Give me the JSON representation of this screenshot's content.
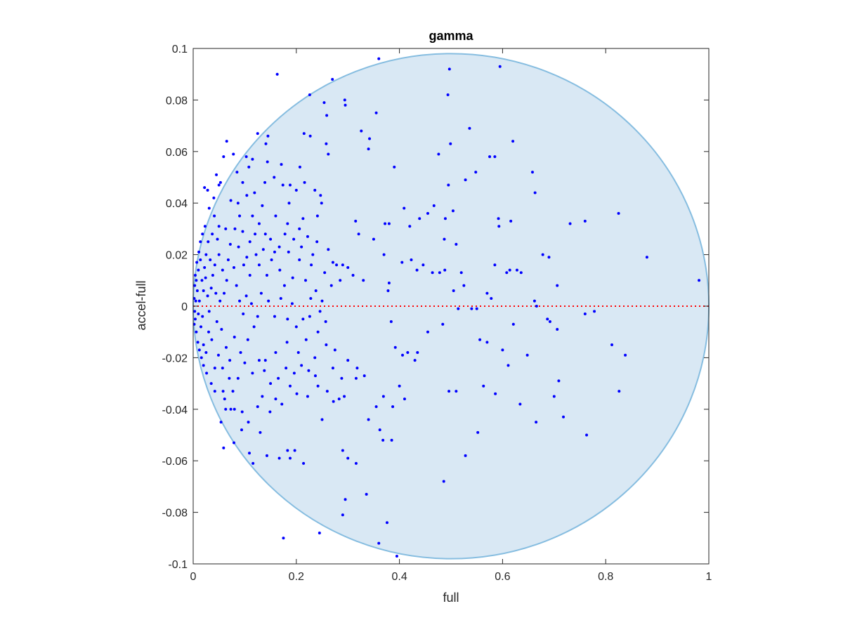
{
  "chart_data": {
    "type": "scatter",
    "title": "gamma",
    "xlabel": "full",
    "ylabel": "accel-full",
    "xlim": [
      0,
      1
    ],
    "ylim": [
      -0.1,
      0.1
    ],
    "xticks": [
      0,
      0.2,
      0.4,
      0.6,
      0.8,
      1
    ],
    "xtick_labels": [
      "0",
      "0.2",
      "0.4",
      "0.6",
      "0.8",
      "1"
    ],
    "yticks": [
      -0.1,
      -0.08,
      -0.06,
      -0.04,
      -0.02,
      0,
      0.02,
      0.04,
      0.06,
      0.08,
      0.1
    ],
    "ytick_labels": [
      "-0.1",
      "-0.08",
      "-0.06",
      "-0.04",
      "-0.02",
      "0",
      "0.02",
      "0.04",
      "0.06",
      "0.08",
      "0.1"
    ],
    "grid": false,
    "reference_line": {
      "y": 0,
      "style": "dotted",
      "color": "#ff0000"
    },
    "region": {
      "type": "ellipse",
      "center": [
        0.5,
        0
      ],
      "radii": [
        0.5,
        0.098
      ],
      "fill": "#d9e8f4",
      "stroke": "#86bde0"
    },
    "marker_color": "#0000ff",
    "points": [
      [
        0.163,
        0.09
      ],
      [
        0.36,
        0.096
      ],
      [
        0.497,
        0.092
      ],
      [
        0.595,
        0.093
      ],
      [
        0.27,
        0.088
      ],
      [
        0.294,
        0.08
      ],
      [
        0.254,
        0.079
      ],
      [
        0.226,
        0.082
      ],
      [
        0.295,
        0.078
      ],
      [
        0.259,
        0.074
      ],
      [
        0.355,
        0.075
      ],
      [
        0.494,
        0.082
      ],
      [
        0.125,
        0.067
      ],
      [
        0.145,
        0.066
      ],
      [
        0.215,
        0.067
      ],
      [
        0.227,
        0.066
      ],
      [
        0.326,
        0.068
      ],
      [
        0.342,
        0.065
      ],
      [
        0.536,
        0.069
      ],
      [
        0.62,
        0.064
      ],
      [
        0.476,
        0.059
      ],
      [
        0.499,
        0.063
      ],
      [
        0.575,
        0.058
      ],
      [
        0.585,
        0.058
      ],
      [
        0.34,
        0.061
      ],
      [
        0.258,
        0.063
      ],
      [
        0.262,
        0.059
      ],
      [
        0.103,
        0.058
      ],
      [
        0.078,
        0.059
      ],
      [
        0.059,
        0.058
      ],
      [
        0.028,
        0.045
      ],
      [
        0.022,
        0.046
      ],
      [
        0.04,
        0.042
      ],
      [
        0.05,
        0.047
      ],
      [
        0.144,
        0.056
      ],
      [
        0.207,
        0.054
      ],
      [
        0.216,
        0.048
      ],
      [
        0.39,
        0.054
      ],
      [
        0.495,
        0.047
      ],
      [
        0.528,
        0.049
      ],
      [
        0.548,
        0.052
      ],
      [
        0.658,
        0.052
      ],
      [
        0.663,
        0.044
      ],
      [
        0.616,
        0.033
      ],
      [
        0.592,
        0.034
      ],
      [
        0.76,
        0.033
      ],
      [
        0.731,
        0.032
      ],
      [
        0.825,
        0.036
      ],
      [
        0.88,
        0.019
      ],
      [
        0.981,
        0.01
      ],
      [
        0.706,
        0.008
      ],
      [
        0.678,
        0.02
      ],
      [
        0.69,
        0.019
      ],
      [
        0.608,
        0.013
      ],
      [
        0.614,
        0.014
      ],
      [
        0.628,
        0.014
      ],
      [
        0.636,
        0.013
      ],
      [
        0.585,
        0.016
      ],
      [
        0.52,
        0.013
      ],
      [
        0.505,
        0.006
      ],
      [
        0.525,
        0.008
      ],
      [
        0.488,
        0.014
      ],
      [
        0.478,
        0.013
      ],
      [
        0.464,
        0.013
      ],
      [
        0.434,
        0.014
      ],
      [
        0.446,
        0.016
      ],
      [
        0.423,
        0.018
      ],
      [
        0.405,
        0.017
      ],
      [
        0.38,
        0.009
      ],
      [
        0.378,
        0.006
      ],
      [
        0.37,
        0.02
      ],
      [
        0.35,
        0.026
      ],
      [
        0.321,
        0.028
      ],
      [
        0.315,
        0.033
      ],
      [
        0.38,
        0.032
      ],
      [
        0.372,
        0.032
      ],
      [
        0.409,
        0.038
      ],
      [
        0.42,
        0.031
      ],
      [
        0.439,
        0.034
      ],
      [
        0.455,
        0.036
      ],
      [
        0.467,
        0.039
      ],
      [
        0.487,
        0.026
      ],
      [
        0.489,
        0.034
      ],
      [
        0.504,
        0.037
      ],
      [
        0.51,
        0.024
      ],
      [
        0.593,
        0.031
      ],
      [
        0.57,
        0.005
      ],
      [
        0.578,
        0.003
      ],
      [
        0.54,
        -0.001
      ],
      [
        0.55,
        -0.001
      ],
      [
        0.621,
        -0.007
      ],
      [
        0.662,
        0.002
      ],
      [
        0.666,
        0.0
      ],
      [
        0.687,
        -0.005
      ],
      [
        0.692,
        -0.006
      ],
      [
        0.706,
        -0.009
      ],
      [
        0.76,
        -0.003
      ],
      [
        0.778,
        -0.002
      ],
      [
        0.812,
        -0.015
      ],
      [
        0.838,
        -0.019
      ],
      [
        0.826,
        -0.033
      ],
      [
        0.763,
        -0.05
      ],
      [
        0.718,
        -0.043
      ],
      [
        0.709,
        -0.029
      ],
      [
        0.7,
        -0.035
      ],
      [
        0.665,
        -0.045
      ],
      [
        0.634,
        -0.038
      ],
      [
        0.648,
        -0.019
      ],
      [
        0.611,
        -0.023
      ],
      [
        0.6,
        -0.017
      ],
      [
        0.586,
        -0.034
      ],
      [
        0.563,
        -0.031
      ],
      [
        0.552,
        -0.049
      ],
      [
        0.496,
        -0.033
      ],
      [
        0.51,
        -0.033
      ],
      [
        0.528,
        -0.058
      ],
      [
        0.486,
        -0.068
      ],
      [
        0.57,
        -0.014
      ],
      [
        0.556,
        -0.013
      ],
      [
        0.514,
        -0.001
      ],
      [
        0.484,
        -0.007
      ],
      [
        0.455,
        -0.01
      ],
      [
        0.43,
        -0.021
      ],
      [
        0.435,
        -0.018
      ],
      [
        0.416,
        -0.018
      ],
      [
        0.406,
        -0.019
      ],
      [
        0.392,
        -0.016
      ],
      [
        0.384,
        -0.006
      ],
      [
        0.41,
        -0.036
      ],
      [
        0.4,
        -0.031
      ],
      [
        0.387,
        -0.039
      ],
      [
        0.369,
        -0.035
      ],
      [
        0.362,
        -0.048
      ],
      [
        0.368,
        -0.052
      ],
      [
        0.385,
        -0.052
      ],
      [
        0.355,
        -0.039
      ],
      [
        0.34,
        -0.044
      ],
      [
        0.332,
        -0.027
      ],
      [
        0.318,
        -0.024
      ],
      [
        0.316,
        -0.028
      ],
      [
        0.293,
        -0.035
      ],
      [
        0.29,
        -0.056
      ],
      [
        0.3,
        -0.059
      ],
      [
        0.316,
        -0.061
      ],
      [
        0.295,
        -0.075
      ],
      [
        0.336,
        -0.073
      ],
      [
        0.29,
        -0.081
      ],
      [
        0.376,
        -0.084
      ],
      [
        0.36,
        -0.092
      ],
      [
        0.395,
        -0.097
      ],
      [
        0.245,
        -0.088
      ],
      [
        0.175,
        -0.09
      ],
      [
        0.214,
        -0.061
      ],
      [
        0.188,
        -0.059
      ],
      [
        0.183,
        -0.056
      ],
      [
        0.197,
        -0.056
      ],
      [
        0.167,
        -0.059
      ],
      [
        0.143,
        -0.058
      ],
      [
        0.116,
        -0.061
      ],
      [
        0.109,
        -0.057
      ],
      [
        0.13,
        -0.049
      ],
      [
        0.094,
        -0.048
      ],
      [
        0.079,
        -0.053
      ],
      [
        0.059,
        -0.055
      ],
      [
        0.054,
        -0.045
      ],
      [
        0.063,
        -0.04
      ],
      [
        0.058,
        -0.033
      ],
      [
        0.042,
        -0.033
      ],
      [
        0.073,
        -0.04
      ],
      [
        0.08,
        -0.04
      ],
      [
        0.095,
        -0.041
      ],
      [
        0.107,
        -0.045
      ],
      [
        0.25,
        -0.044
      ],
      [
        0.26,
        -0.033
      ],
      [
        0.272,
        -0.037
      ],
      [
        0.283,
        -0.036
      ],
      [
        0.242,
        -0.031
      ],
      [
        0.237,
        -0.027
      ],
      [
        0.222,
        -0.035
      ],
      [
        0.201,
        -0.034
      ],
      [
        0.188,
        -0.031
      ],
      [
        0.172,
        -0.038
      ],
      [
        0.16,
        -0.036
      ],
      [
        0.149,
        -0.041
      ],
      [
        0.134,
        -0.035
      ],
      [
        0.125,
        -0.039
      ],
      [
        0.14,
        -0.021
      ],
      [
        0.16,
        -0.018
      ],
      [
        0.182,
        -0.014
      ],
      [
        0.204,
        -0.018
      ],
      [
        0.219,
        -0.013
      ],
      [
        0.242,
        -0.01
      ],
      [
        0.258,
        -0.015
      ],
      [
        0.275,
        -0.017
      ],
      [
        0.25,
        0.002
      ],
      [
        0.246,
        -0.002
      ],
      [
        0.228,
        0.003
      ],
      [
        0.218,
        0.01
      ],
      [
        0.229,
        0.016
      ],
      [
        0.232,
        0.02
      ],
      [
        0.206,
        0.018
      ],
      [
        0.193,
        0.011
      ],
      [
        0.177,
        0.008
      ],
      [
        0.168,
        0.014
      ],
      [
        0.158,
        0.021
      ],
      [
        0.15,
        0.026
      ],
      [
        0.14,
        0.028
      ],
      [
        0.136,
        0.022
      ],
      [
        0.122,
        0.02
      ],
      [
        0.11,
        0.012
      ],
      [
        0.104,
        0.019
      ],
      [
        0.096,
        0.029
      ],
      [
        0.09,
        0.035
      ],
      [
        0.087,
        0.04
      ],
      [
        0.104,
        0.043
      ],
      [
        0.119,
        0.044
      ],
      [
        0.139,
        0.048
      ],
      [
        0.174,
        0.047
      ],
      [
        0.186,
        0.04
      ],
      [
        0.2,
        0.045
      ],
      [
        0.236,
        0.045
      ],
      [
        0.247,
        0.043
      ],
      [
        0.249,
        0.04
      ],
      [
        0.241,
        0.035
      ],
      [
        0.213,
        0.034
      ],
      [
        0.206,
        0.03
      ],
      [
        0.183,
        0.032
      ],
      [
        0.178,
        0.028
      ],
      [
        0.16,
        0.035
      ],
      [
        0.134,
        0.039
      ],
      [
        0.128,
        0.032
      ],
      [
        0.12,
        0.028
      ],
      [
        0.115,
        0.035
      ],
      [
        0.081,
        0.03
      ],
      [
        0.072,
        0.024
      ],
      [
        0.063,
        0.03
      ],
      [
        0.05,
        0.031
      ],
      [
        0.041,
        0.035
      ],
      [
        0.037,
        0.028
      ],
      [
        0.029,
        0.025
      ],
      [
        0.025,
        0.02
      ],
      [
        0.022,
        0.015
      ],
      [
        0.033,
        0.018
      ],
      [
        0.042,
        0.016
      ],
      [
        0.05,
        0.02
      ],
      [
        0.057,
        0.014
      ],
      [
        0.065,
        0.01
      ],
      [
        0.068,
        0.018
      ],
      [
        0.079,
        0.015
      ],
      [
        0.084,
        0.008
      ],
      [
        0.09,
        0.002
      ],
      [
        0.097,
        -0.003
      ],
      [
        0.103,
        0.004
      ],
      [
        0.113,
        0.001
      ],
      [
        0.125,
        -0.004
      ],
      [
        0.132,
        0.005
      ],
      [
        0.146,
        0.002
      ],
      [
        0.158,
        -0.004
      ],
      [
        0.17,
        0.003
      ],
      [
        0.183,
        -0.005
      ],
      [
        0.192,
        0.001
      ],
      [
        0.2,
        -0.008
      ],
      [
        0.213,
        -0.005
      ],
      [
        0.226,
        -0.004
      ],
      [
        0.238,
        0.006
      ],
      [
        0.118,
        -0.008
      ],
      [
        0.106,
        -0.013
      ],
      [
        0.092,
        -0.018
      ],
      [
        0.08,
        -0.012
      ],
      [
        0.071,
        -0.021
      ],
      [
        0.064,
        -0.016
      ],
      [
        0.057,
        -0.024
      ],
      [
        0.049,
        -0.019
      ],
      [
        0.042,
        -0.024
      ],
      [
        0.036,
        -0.013
      ],
      [
        0.03,
        -0.01
      ],
      [
        0.025,
        -0.018
      ],
      [
        0.02,
        -0.015
      ],
      [
        0.015,
        -0.008
      ],
      [
        0.018,
        -0.004
      ],
      [
        0.012,
        0.002
      ],
      [
        0.01,
        -0.003
      ],
      [
        0.008,
        0.006
      ],
      [
        0.005,
        0.002
      ],
      [
        0.004,
        -0.005
      ],
      [
        0.006,
        0.01
      ],
      [
        0.01,
        0.014
      ],
      [
        0.014,
        0.018
      ],
      [
        0.017,
        0.01
      ],
      [
        0.02,
        0.006
      ],
      [
        0.024,
        0.011
      ],
      [
        0.028,
        0.004
      ],
      [
        0.031,
        -0.002
      ],
      [
        0.035,
        0.007
      ],
      [
        0.038,
        0.012
      ],
      [
        0.044,
        0.005
      ],
      [
        0.046,
        -0.006
      ],
      [
        0.052,
        0.002
      ],
      [
        0.055,
        -0.009
      ],
      [
        0.06,
        0.005
      ],
      [
        0.003,
        0.008
      ],
      [
        0.002,
        0.003
      ],
      [
        0.003,
        -0.002
      ],
      [
        0.002,
        -0.007
      ],
      [
        0.004,
        0.012
      ],
      [
        0.006,
        -0.01
      ],
      [
        0.007,
        0.017
      ],
      [
        0.009,
        -0.014
      ],
      [
        0.011,
        0.021
      ],
      [
        0.012,
        -0.017
      ],
      [
        0.014,
        0.025
      ],
      [
        0.016,
        -0.02
      ],
      [
        0.018,
        0.028
      ],
      [
        0.02,
        -0.023
      ],
      [
        0.023,
        0.031
      ],
      [
        0.026,
        -0.026
      ],
      [
        0.031,
        0.038
      ],
      [
        0.035,
        -0.03
      ],
      [
        0.045,
        0.051
      ],
      [
        0.053,
        0.048
      ],
      [
        0.065,
        0.064
      ],
      [
        0.073,
        0.041
      ],
      [
        0.085,
        0.052
      ],
      [
        0.096,
        0.048
      ],
      [
        0.108,
        0.054
      ],
      [
        0.115,
        0.057
      ],
      [
        0.141,
        0.063
      ],
      [
        0.157,
        0.05
      ],
      [
        0.171,
        0.055
      ],
      [
        0.188,
        0.047
      ],
      [
        0.047,
        0.026
      ],
      [
        0.088,
        0.023
      ],
      [
        0.098,
        0.016
      ],
      [
        0.11,
        0.025
      ],
      [
        0.128,
        0.016
      ],
      [
        0.143,
        0.012
      ],
      [
        0.152,
        0.018
      ],
      [
        0.167,
        0.023
      ],
      [
        0.185,
        0.021
      ],
      [
        0.195,
        0.026
      ],
      [
        0.21,
        0.023
      ],
      [
        0.222,
        0.027
      ],
      [
        0.24,
        0.025
      ],
      [
        0.255,
        0.013
      ],
      [
        0.262,
        0.022
      ],
      [
        0.271,
        0.017
      ],
      [
        0.278,
        0.016
      ],
      [
        0.29,
        0.016
      ],
      [
        0.3,
        0.015
      ],
      [
        0.285,
        0.01
      ],
      [
        0.31,
        0.012
      ],
      [
        0.33,
        0.01
      ],
      [
        0.268,
        0.008
      ],
      [
        0.257,
        -0.006
      ],
      [
        0.271,
        -0.024
      ],
      [
        0.288,
        -0.028
      ],
      [
        0.3,
        -0.021
      ],
      [
        0.236,
        -0.02
      ],
      [
        0.224,
        -0.025
      ],
      [
        0.21,
        -0.023
      ],
      [
        0.196,
        -0.026
      ],
      [
        0.18,
        -0.024
      ],
      [
        0.165,
        -0.028
      ],
      [
        0.15,
        -0.03
      ],
      [
        0.138,
        -0.025
      ],
      [
        0.128,
        -0.021
      ],
      [
        0.115,
        -0.026
      ],
      [
        0.1,
        -0.022
      ],
      [
        0.087,
        -0.028
      ],
      [
        0.077,
        -0.033
      ],
      [
        0.07,
        -0.028
      ],
      [
        0.061,
        -0.036
      ]
    ]
  }
}
